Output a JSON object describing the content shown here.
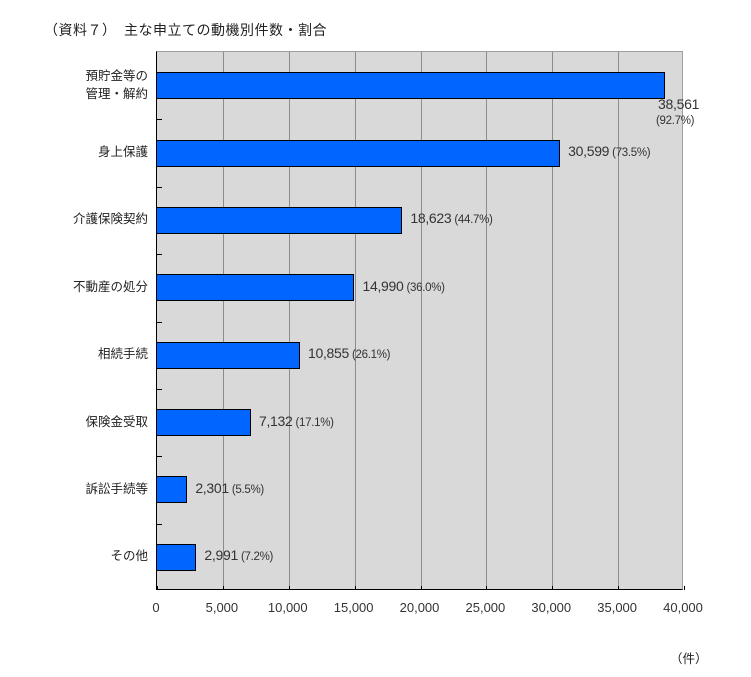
{
  "title": "（資料７）　主な申立ての動機別件数・割合",
  "unit": "（件）",
  "chart_data": {
    "type": "bar",
    "orientation": "horizontal",
    "title": "（資料７）　主な申立ての動機別件数・割合",
    "xlabel": "（件）",
    "ylabel": "",
    "xlim": [
      0,
      40000
    ],
    "x_ticks": [
      "0",
      "5,000",
      "10,000",
      "15,000",
      "20,000",
      "25,000",
      "30,000",
      "35,000",
      "40,000"
    ],
    "grid": true,
    "legend": "none",
    "bar_color": "#0066ff",
    "plot_background": "#d9d9d9",
    "categories": [
      "預貯金等の\n管理・解約",
      "身上保護",
      "介護保険契約",
      "不動産の処分",
      "相続手続",
      "保険金受取",
      "訴訟手続等",
      "その他"
    ],
    "values": [
      38561,
      30599,
      18623,
      14990,
      10855,
      7132,
      2301,
      2991
    ],
    "value_labels": [
      "38,561",
      "30,599",
      "18,623",
      "14,990",
      "10,855",
      "7,132",
      "2,301",
      "2,991"
    ],
    "percentages": [
      "(92.7%)",
      "(73.5%)",
      "(44.7%)",
      "(36.0%)",
      "(26.1%)",
      "(17.1%)",
      "(5.5%)",
      "(7.2%)"
    ]
  }
}
